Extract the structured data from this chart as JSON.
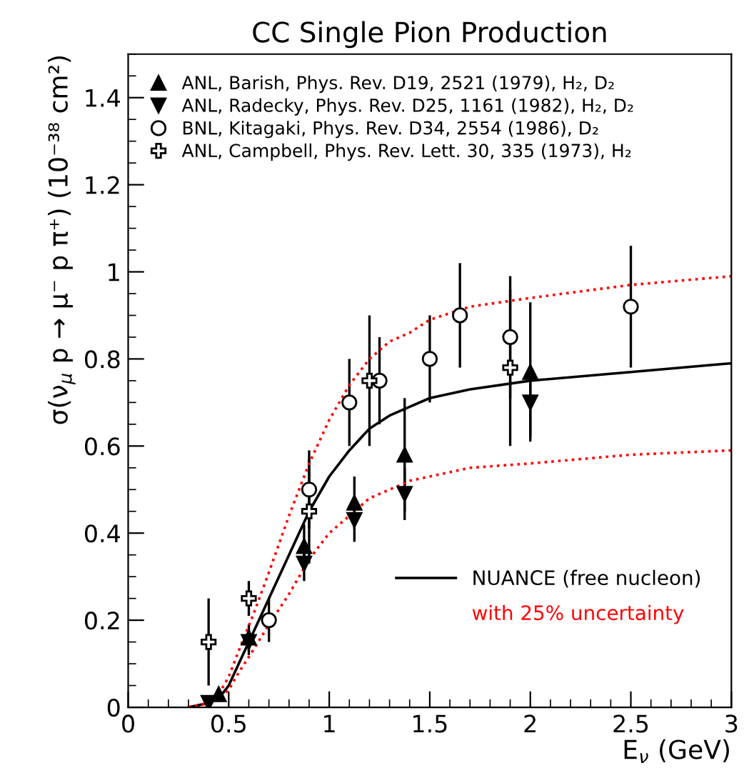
{
  "chart_data": {
    "type": "scatter",
    "title": "CC Single Pion Production",
    "xlabel": "E$_{ν}$ (GeV)",
    "ylabel": "σ(ν$_{μ}$ p → μ⁻ p π⁺) (10⁻³⁸ cm²)",
    "xlim": [
      0,
      3
    ],
    "ylim": [
      0,
      1.5
    ],
    "xticks": [
      0,
      0.5,
      1,
      1.5,
      2,
      2.5,
      3
    ],
    "yticks": [
      0,
      0.2,
      0.4,
      0.6,
      0.8,
      1,
      1.2,
      1.4
    ],
    "grid": false,
    "legend": "top left",
    "series": [
      {
        "name": "ANL, Barish, Phys. Rev. D19, 2521 (1979), H₂, D₂",
        "marker": "triangle",
        "color": "#000000",
        "x": [
          0.45,
          0.6,
          0.875,
          1.125,
          1.375,
          2.0
        ],
        "values": [
          0.03,
          0.16,
          0.37,
          0.47,
          0.58,
          0.77
        ],
        "errors": [
          null,
          0.03,
          0.05,
          0.06,
          0.13,
          0.16
        ]
      },
      {
        "name": "ANL, Radecky, Phys. Rev. D25, 1161 (1982), H₂, D₂",
        "marker": "triangle-down",
        "color": "#000000",
        "x": [
          0.4,
          0.6,
          0.875,
          1.125,
          1.375,
          2.0
        ],
        "values": [
          0.01,
          0.15,
          0.33,
          0.43,
          0.49,
          0.7
        ],
        "errors": [
          null,
          0.03,
          0.04,
          0.05,
          0.06,
          0.08
        ]
      },
      {
        "name": "BNL, Kitagaki, Phys. Rev. D34, 2554 (1986), D₂",
        "marker": "circle",
        "color": "#000000",
        "x": [
          0.7,
          0.9,
          1.1,
          1.25,
          1.5,
          1.65,
          1.9,
          2.5
        ],
        "values": [
          0.2,
          0.5,
          0.7,
          0.75,
          0.8,
          0.9,
          0.85,
          0.92
        ],
        "errors": [
          0.05,
          0.09,
          0.1,
          0.1,
          0.1,
          0.12,
          0.14,
          0.14
        ]
      },
      {
        "name": "ANL, Campbell, Phys. Rev. Lett. 30, 335 (1973), H₂",
        "marker": "cross",
        "color": "#000000",
        "x": [
          0.4,
          0.6,
          0.9,
          1.2,
          1.9
        ],
        "values": [
          0.15,
          0.25,
          0.45,
          0.75,
          0.78
        ],
        "errors": [
          0.1,
          0.04,
          0.12,
          0.15,
          0.18
        ]
      },
      {
        "name": "NUANCE (free nucleon)",
        "type": "line",
        "line_style": "solid",
        "color": "#000000",
        "x": [
          0.3,
          0.4,
          0.45,
          0.5,
          0.55,
          0.62,
          0.7,
          0.8,
          0.9,
          1.0,
          1.1,
          1.2,
          1.3,
          1.4,
          1.5,
          1.7,
          2.0,
          2.5,
          3.0
        ],
        "values": [
          0,
          0.01,
          0.02,
          0.05,
          0.1,
          0.17,
          0.25,
          0.35,
          0.45,
          0.53,
          0.59,
          0.64,
          0.67,
          0.69,
          0.71,
          0.73,
          0.75,
          0.77,
          0.79
        ]
      },
      {
        "name": "with 25% uncertainty",
        "type": "line",
        "line_style": "dotted",
        "color": "#ff0000",
        "x": [
          0.3,
          0.4,
          0.45,
          0.5,
          0.55,
          0.62,
          0.7,
          0.8,
          0.9,
          1.0,
          1.1,
          1.2,
          1.3,
          1.4,
          1.5,
          1.7,
          2.0,
          2.5,
          3.0
        ],
        "values": [
          0,
          0.01,
          0.03,
          0.07,
          0.13,
          0.21,
          0.31,
          0.44,
          0.56,
          0.66,
          0.74,
          0.8,
          0.84,
          0.86,
          0.89,
          0.92,
          0.94,
          0.97,
          0.99
        ]
      },
      {
        "type": "line",
        "line_style": "dotted",
        "color": "#ff0000",
        "x": [
          0.3,
          0.4,
          0.45,
          0.5,
          0.55,
          0.62,
          0.7,
          0.8,
          0.9,
          1.0,
          1.1,
          1.2,
          1.3,
          1.4,
          1.5,
          1.7,
          2.0,
          2.5,
          3.0
        ],
        "values": [
          0,
          0.01,
          0.02,
          0.04,
          0.08,
          0.13,
          0.19,
          0.26,
          0.34,
          0.4,
          0.44,
          0.48,
          0.5,
          0.52,
          0.53,
          0.55,
          0.56,
          0.58,
          0.59
        ]
      }
    ]
  }
}
